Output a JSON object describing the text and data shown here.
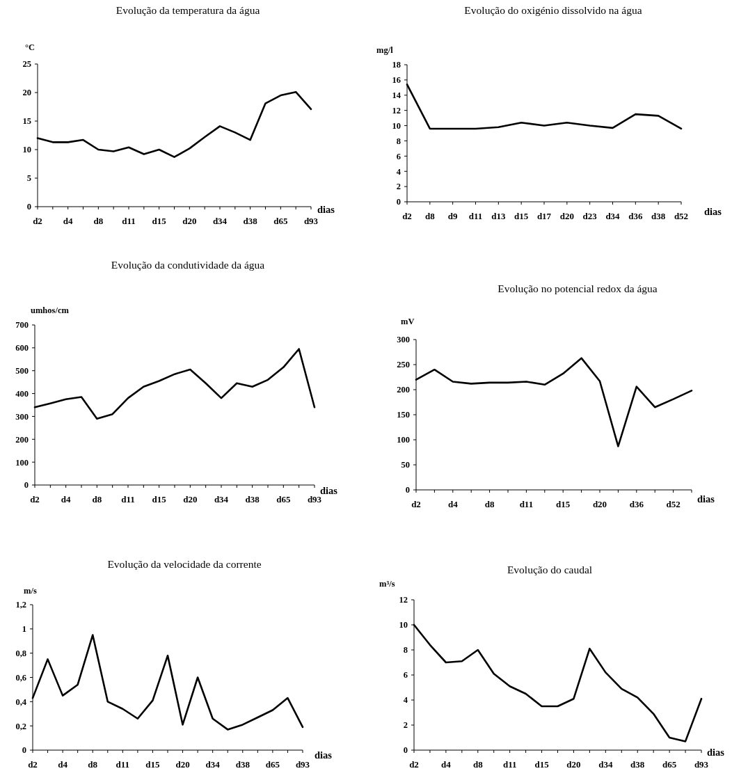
{
  "chart_data": [
    {
      "type": "line",
      "title": "Evolução da temperatura da água",
      "ylabel": "°C",
      "xlabel": "dias",
      "categories": [
        "d2",
        null,
        "d4",
        null,
        "d8",
        null,
        "d11",
        null,
        "d15",
        null,
        "d20",
        null,
        "d34",
        null,
        "d38",
        null,
        "d65",
        null,
        "d93"
      ],
      "values": [
        12,
        11.3,
        11.3,
        11.7,
        10,
        9.7,
        10.4,
        9.2,
        10,
        8.7,
        10.2,
        12.2,
        14.1,
        13,
        11.7,
        18.1,
        19.5,
        20.1,
        17.1
      ],
      "color": "#000000",
      "ylim": [
        0,
        25
      ],
      "yticks": [
        0,
        5,
        10,
        15,
        20,
        25
      ]
    },
    {
      "type": "line",
      "title": "Evolução do oxigénio dissolvido na água",
      "ylabel": "mg/l",
      "xlabel": "dias",
      "categories": [
        "d2",
        "d8",
        "d9",
        "d11",
        "d13",
        "d15",
        "d17",
        "d20",
        "d23",
        "d34",
        "d36",
        "d38",
        "d52"
      ],
      "values": [
        15.4,
        9.6,
        9.6,
        9.6,
        9.8,
        10.4,
        10,
        10.4,
        10,
        9.7,
        11.5,
        11.3,
        9.6
      ],
      "color": "#000000",
      "ylim": [
        0,
        18
      ],
      "yticks": [
        0,
        2,
        4,
        6,
        8,
        10,
        12,
        14,
        16,
        18
      ]
    },
    {
      "type": "line",
      "title": "Evolução da condutividade da água",
      "ylabel": "umhos/cm",
      "xlabel": "dias",
      "categories": [
        "d2",
        null,
        "d4",
        null,
        "d8",
        null,
        "d11",
        null,
        "d15",
        null,
        "d20",
        null,
        "d34",
        null,
        "d38",
        null,
        "d65",
        null,
        "d93"
      ],
      "values": [
        340,
        357,
        375,
        385,
        290,
        310,
        380,
        430,
        455,
        485,
        505,
        445,
        380,
        445,
        430,
        460,
        515,
        595,
        340
      ],
      "color": "#000000",
      "ylim": [
        0,
        700
      ],
      "yticks": [
        0,
        100,
        200,
        300,
        400,
        500,
        600,
        700
      ]
    },
    {
      "type": "line",
      "title": "Evolução no potencial redox da água",
      "ylabel": "mV",
      "xlabel": "dias",
      "categories": [
        "d2",
        null,
        "d4",
        null,
        "d8",
        null,
        "d11",
        null,
        "d15",
        null,
        "d20",
        null,
        "d36",
        null,
        "d52",
        null
      ],
      "values": [
        220,
        240,
        216,
        212,
        214,
        214,
        216,
        210,
        232,
        263,
        217,
        87,
        206,
        165,
        181,
        198
      ],
      "color": "#000000",
      "ylim": [
        0,
        300
      ],
      "yticks": [
        0,
        50,
        100,
        150,
        200,
        250,
        300
      ]
    },
    {
      "type": "line",
      "title": "Evolução da velocidade da corrente",
      "ylabel": "m/s",
      "xlabel": "dias",
      "categories": [
        "d2",
        null,
        "d4",
        null,
        "d8",
        null,
        "d11",
        null,
        "d15",
        null,
        "d20",
        null,
        "d34",
        null,
        "d38",
        null,
        "d65",
        null,
        "d93"
      ],
      "values": [
        0.43,
        0.75,
        0.45,
        0.54,
        0.95,
        0.4,
        0.34,
        0.26,
        0.41,
        0.78,
        0.21,
        0.6,
        0.26,
        0.17,
        0.21,
        0.27,
        0.33,
        0.43,
        0.19
      ],
      "color": "#000000",
      "ylim": [
        0,
        1.2
      ],
      "yticks": [
        0,
        {
          "value": 0.2,
          "label": "0,2"
        },
        {
          "value": 0.4,
          "label": "0,4"
        },
        {
          "value": 0.6,
          "label": "0,6"
        },
        {
          "value": 0.8,
          "label": "0,8"
        },
        1,
        {
          "value": 1.2,
          "label": "1,2"
        }
      ]
    },
    {
      "type": "line",
      "title": "Evolução do caudal",
      "ylabel": "m³/s",
      "xlabel": "dias",
      "categories": [
        "d2",
        null,
        "d4",
        null,
        "d8",
        null,
        "d11",
        null,
        "d15",
        null,
        "d20",
        null,
        "d34",
        null,
        "d38",
        null,
        "d65",
        null,
        "d93"
      ],
      "values": [
        10,
        8.4,
        7,
        7.1,
        8,
        6.1,
        5.1,
        4.5,
        3.5,
        3.5,
        4.1,
        8.1,
        6.2,
        4.9,
        4.2,
        2.9,
        1,
        0.7,
        4.1
      ],
      "color": "#000000",
      "ylim": [
        0,
        12
      ],
      "yticks": [
        0,
        2,
        4,
        6,
        8,
        10,
        12
      ]
    }
  ]
}
